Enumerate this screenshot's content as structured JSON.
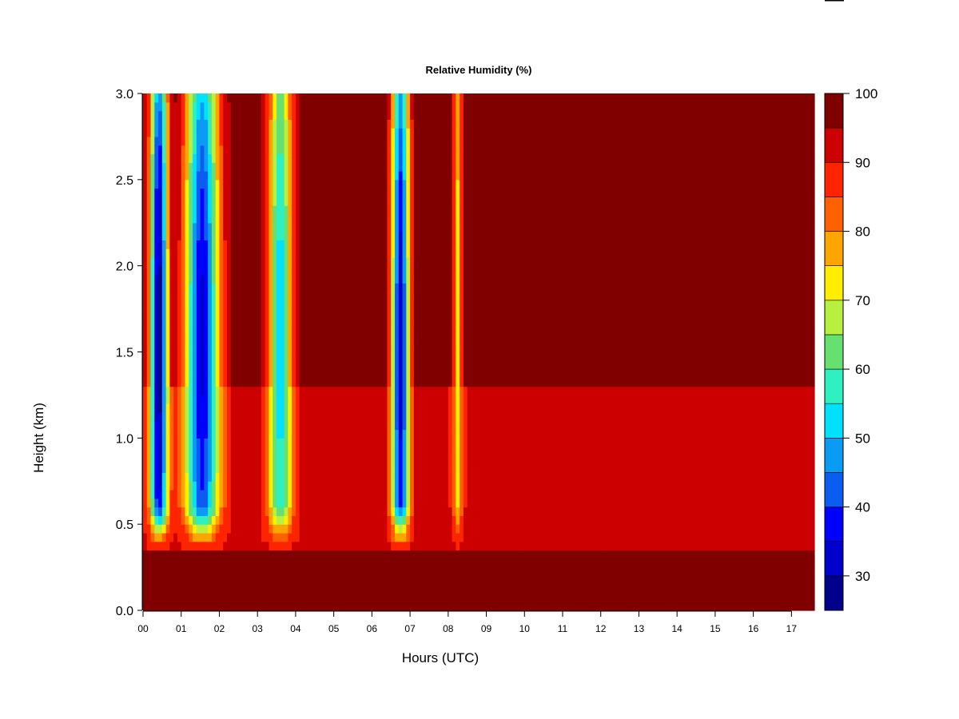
{
  "chart_data": {
    "type": "heatmap",
    "title": "Relative Humidity (%)",
    "xlabel": "Hours (UTC)",
    "ylabel": "Height (km)",
    "xlim": [
      0,
      17.6
    ],
    "ylim": [
      0.0,
      3.0
    ],
    "x_ticks": [
      "00",
      "01",
      "02",
      "03",
      "04",
      "05",
      "06",
      "07",
      "08",
      "09",
      "10",
      "11",
      "12",
      "13",
      "14",
      "15",
      "16",
      "17"
    ],
    "y_ticks": [
      "0.0",
      "0.5",
      "1.0",
      "1.5",
      "2.0",
      "2.5",
      "3.0"
    ],
    "colorbar": {
      "range": [
        25,
        100
      ],
      "tick_values": [
        30,
        40,
        50,
        60,
        70,
        80,
        90,
        100
      ],
      "tick_labels": [
        "30",
        "40",
        "50",
        "60",
        "70",
        "80",
        "90",
        "100"
      ],
      "bands": [
        {
          "from": 25,
          "to": 30,
          "color": "#00008b"
        },
        {
          "from": 30,
          "to": 35,
          "color": "#0000cd"
        },
        {
          "from": 35,
          "to": 40,
          "color": "#0000ff"
        },
        {
          "from": 40,
          "to": 45,
          "color": "#0b5cf0"
        },
        {
          "from": 45,
          "to": 50,
          "color": "#0a9cf5"
        },
        {
          "from": 50,
          "to": 55,
          "color": "#00e0ff"
        },
        {
          "from": 55,
          "to": 60,
          "color": "#2ef0c0"
        },
        {
          "from": 60,
          "to": 65,
          "color": "#66e070"
        },
        {
          "from": 65,
          "to": 70,
          "color": "#b8f040"
        },
        {
          "from": 70,
          "to": 75,
          "color": "#ffee00"
        },
        {
          "from": 75,
          "to": 80,
          "color": "#ffa500"
        },
        {
          "from": 80,
          "to": 85,
          "color": "#ff6000"
        },
        {
          "from": 85,
          "to": 90,
          "color": "#ff2400"
        },
        {
          "from": 90,
          "to": 95,
          "color": "#cc0000"
        },
        {
          "from": 95,
          "to": 100,
          "color": "#800000"
        }
      ]
    },
    "dry_columns": [
      {
        "center": 0.42,
        "width": 0.22,
        "min_rh": 27
      },
      {
        "center": 1.55,
        "width": 0.42,
        "min_rh": 34
      },
      {
        "center": 3.6,
        "width": 0.3,
        "min_rh": 52
      },
      {
        "center": 6.75,
        "width": 0.22,
        "min_rh": 32
      },
      {
        "center": 8.25,
        "width": 0.12,
        "min_rh": 72
      }
    ],
    "surface_layer_top_km": 0.35,
    "upper_background_rh": 98,
    "lower_background_rh": 91
  }
}
